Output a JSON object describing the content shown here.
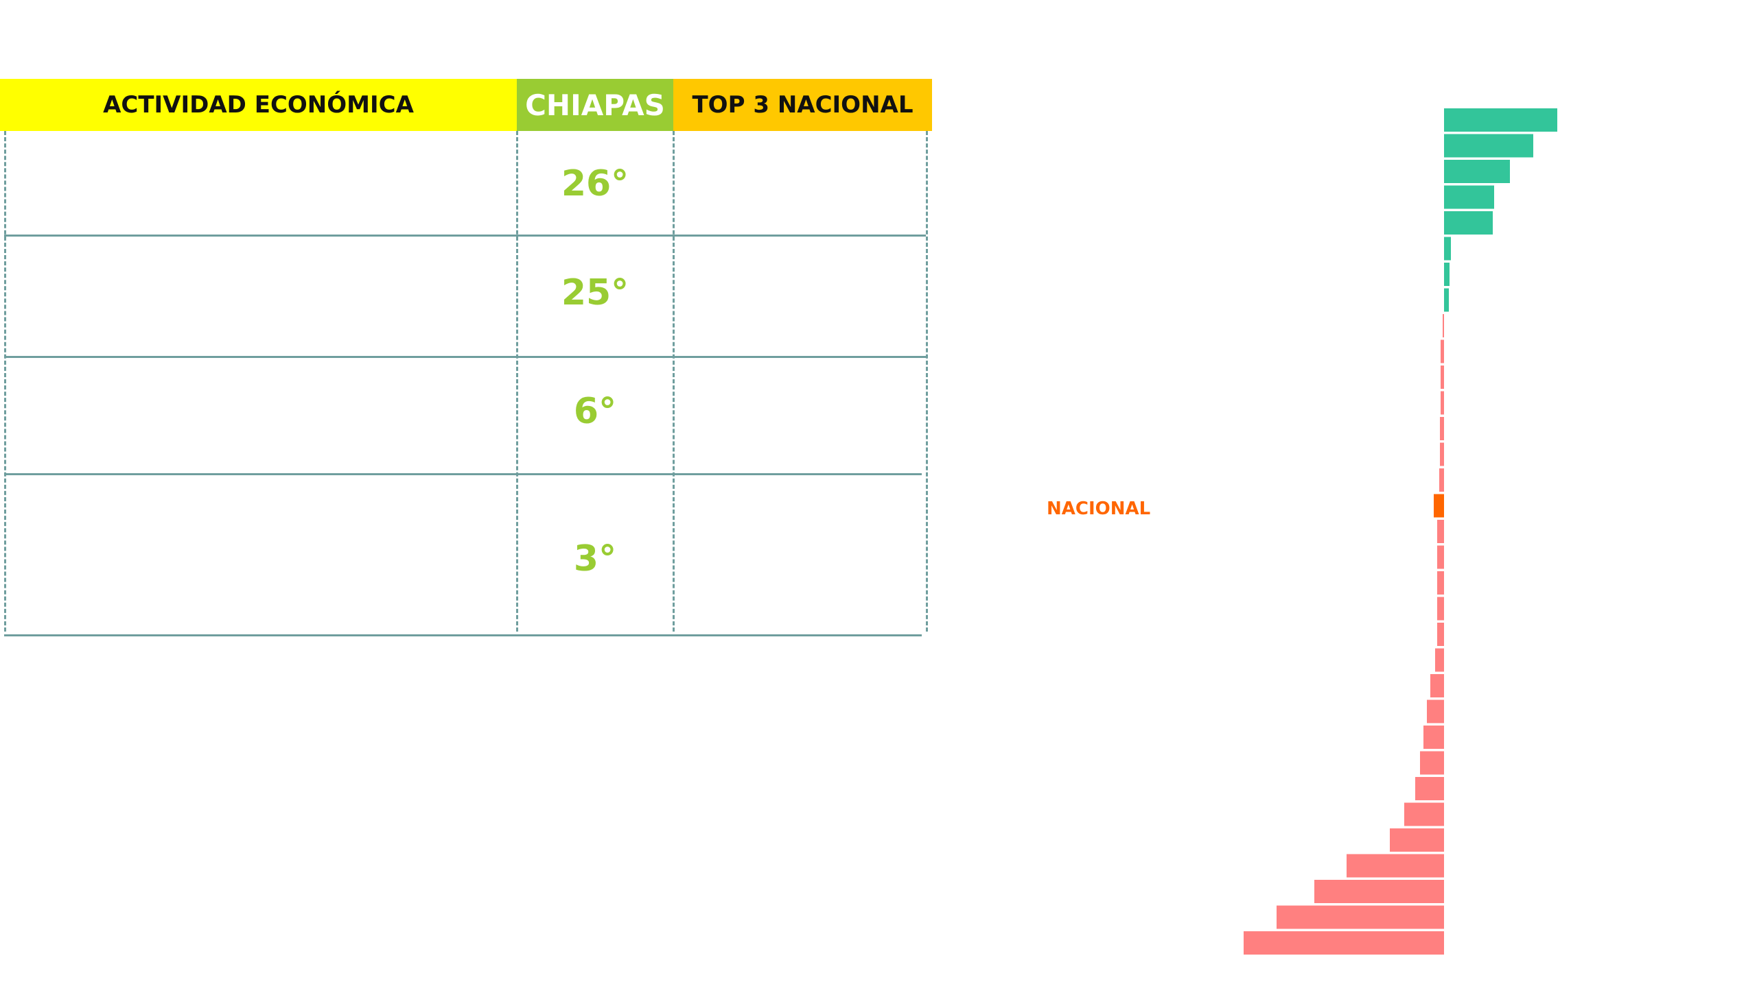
{
  "table": {
    "headers": {
      "activity": "ACTIVIDAD ECONÓMICA",
      "state": "CHIAPAS",
      "top3": "TOP 3 NACIONAL"
    },
    "rows": [
      {
        "rank": "26°"
      },
      {
        "rank": "25°"
      },
      {
        "rank": "6°"
      },
      {
        "rank": "3°"
      }
    ]
  },
  "colors": {
    "positive": "#33c59a",
    "negative": "#ff8080",
    "national": "#ff6600",
    "header_activity": "#ffff00",
    "header_state": "#99cc33",
    "header_top3": "#ffc800",
    "rank_text": "#99cc33",
    "grid": "#6f9e9e"
  },
  "chart_data": {
    "type": "bar",
    "orientation": "horizontal",
    "highlight_label": "NACIONAL",
    "highlight_index": 15,
    "values": [
      16.5,
      13.0,
      9.6,
      7.3,
      7.1,
      1.0,
      0.8,
      0.7,
      -0.2,
      -0.5,
      -0.5,
      -0.5,
      -0.6,
      -0.6,
      -0.7,
      -1.5,
      -1.0,
      -1.0,
      -1.0,
      -1.0,
      -1.0,
      -1.3,
      -2.0,
      -2.5,
      -3.0,
      -3.5,
      -4.2,
      -5.8,
      -7.9,
      -14.2,
      -18.9,
      -24.4,
      -29.2
    ],
    "xlim": [
      -30,
      17
    ]
  }
}
